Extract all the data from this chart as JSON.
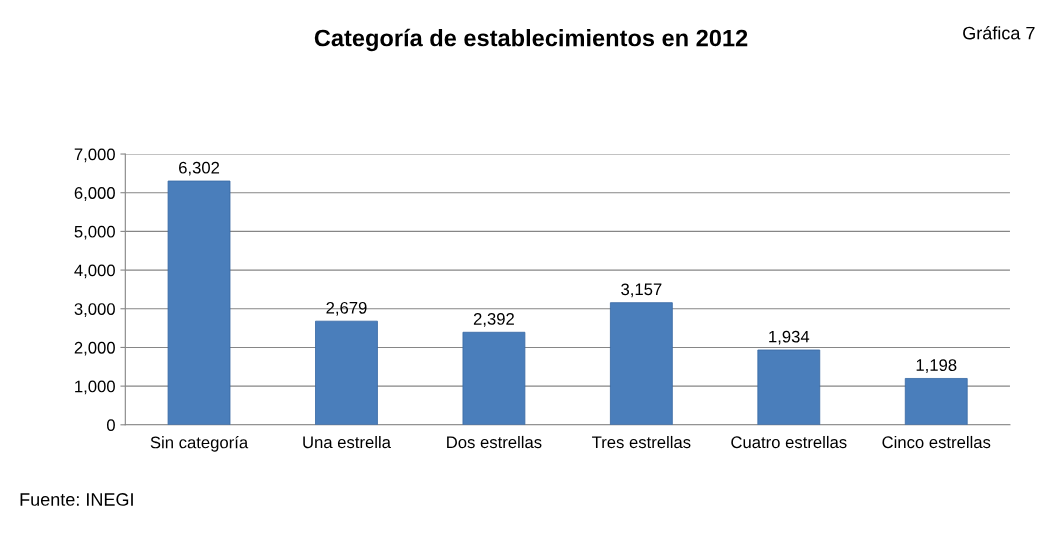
{
  "chart_data": {
    "type": "bar",
    "title": "Categoría de establecimientos en 2012",
    "categories": [
      "Sin categoría",
      "Una estrella",
      "Dos estrellas",
      "Tres estrellas",
      "Cuatro estrellas",
      "Cinco estrellas"
    ],
    "values": [
      6302,
      2679,
      2392,
      3157,
      1934,
      1198
    ],
    "value_labels": [
      "6,302",
      "2,679",
      "2,392",
      "3,157",
      "1,934",
      "1,198"
    ],
    "color": "#4a7ebb",
    "ylim": [
      0,
      7000
    ],
    "yticks": [
      {
        "value": 0,
        "label": "0"
      },
      {
        "value": 1000,
        "label": "1,000"
      },
      {
        "value": 2000,
        "label": "2,000"
      },
      {
        "value": 3000,
        "label": "3,000"
      },
      {
        "value": 4000,
        "label": "4,000"
      },
      {
        "value": 5000,
        "label": "5,000"
      },
      {
        "value": 6000,
        "label": "6,000"
      },
      {
        "value": 7000,
        "label": "7,000"
      }
    ],
    "grid": "y",
    "annotations": [
      "Gráfica 7",
      "Fuente: INEGI"
    ]
  }
}
